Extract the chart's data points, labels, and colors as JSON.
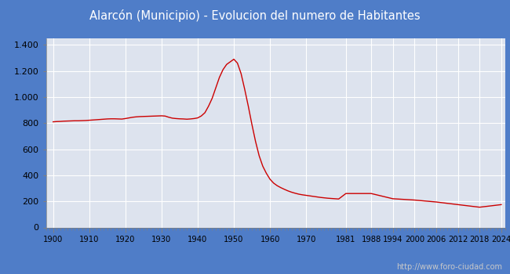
{
  "title": "Alarcón (Municipio) - Evolucion del numero de Habitantes",
  "title_color": "white",
  "title_bg_color": "#4f7dc8",
  "plot_bg_color": "#dde3ee",
  "border_color": "#4f7dc8",
  "grid_color": "white",
  "line_color": "#cc0000",
  "watermark": "http://www.foro-ciudad.com",
  "watermark_color": "#c8c8c8",
  "xticks": [
    1900,
    1910,
    1920,
    1930,
    1940,
    1950,
    1960,
    1970,
    1981,
    1988,
    1994,
    2000,
    2006,
    2012,
    2018,
    2024
  ],
  "yticks": [
    0,
    200,
    400,
    600,
    800,
    1000,
    1200,
    1400
  ],
  "ylim": [
    0,
    1450
  ],
  "xlim": [
    1898,
    2025
  ],
  "years": [
    1900,
    1901,
    1902,
    1903,
    1904,
    1905,
    1906,
    1907,
    1908,
    1909,
    1910,
    1911,
    1912,
    1913,
    1914,
    1915,
    1916,
    1917,
    1918,
    1919,
    1920,
    1921,
    1922,
    1923,
    1924,
    1925,
    1926,
    1927,
    1928,
    1929,
    1930,
    1931,
    1932,
    1933,
    1934,
    1935,
    1936,
    1937,
    1938,
    1939,
    1940,
    1941,
    1942,
    1943,
    1944,
    1945,
    1946,
    1947,
    1948,
    1949,
    1950,
    1951,
    1952,
    1953,
    1954,
    1955,
    1956,
    1957,
    1958,
    1959,
    1960,
    1961,
    1962,
    1963,
    1964,
    1965,
    1966,
    1967,
    1968,
    1969,
    1970,
    1971,
    1972,
    1973,
    1974,
    1975,
    1976,
    1977,
    1978,
    1979,
    1981,
    1988,
    1994,
    2000,
    2006,
    2012,
    2018,
    2024
  ],
  "population": [
    810,
    812,
    813,
    815,
    816,
    817,
    818,
    818,
    819,
    820,
    822,
    824,
    826,
    828,
    830,
    832,
    833,
    833,
    832,
    831,
    835,
    840,
    845,
    848,
    850,
    851,
    852,
    853,
    854,
    855,
    856,
    854,
    845,
    838,
    835,
    833,
    832,
    830,
    832,
    835,
    840,
    855,
    880,
    930,
    990,
    1070,
    1150,
    1210,
    1250,
    1270,
    1290,
    1260,
    1180,
    1060,
    930,
    790,
    660,
    550,
    470,
    415,
    370,
    340,
    320,
    305,
    292,
    280,
    270,
    262,
    255,
    250,
    246,
    242,
    238,
    234,
    230,
    227,
    224,
    222,
    220,
    218,
    260,
    260,
    220,
    210,
    195,
    175,
    155,
    175
  ]
}
